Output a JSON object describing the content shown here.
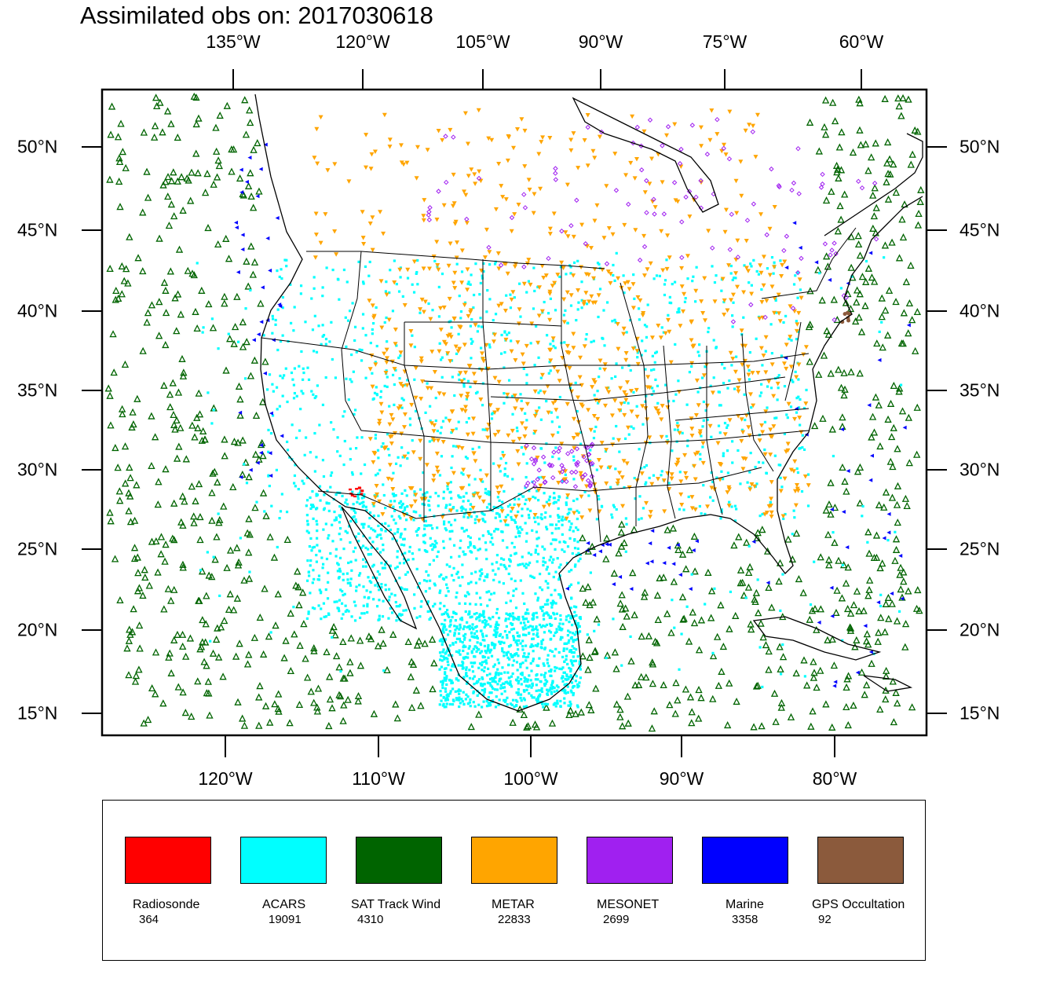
{
  "title": "Assimilated obs on: 2017030618",
  "map": {
    "top_lon_labels": [
      "135°W",
      "120°W",
      "105°W",
      "90°W",
      "75°W",
      "60°W"
    ],
    "bottom_lon_labels": [
      "120°W",
      "110°W",
      "100°W",
      "90°W",
      "80°W"
    ],
    "lat_labels": [
      "50°N",
      "45°N",
      "40°N",
      "35°N",
      "30°N",
      "25°N",
      "20°N",
      "15°N"
    ]
  },
  "legend": [
    {
      "name": "Radiosonde",
      "count": "364",
      "color": "#ff0000"
    },
    {
      "name": "ACARS",
      "count": "19091",
      "color": "#00ffff"
    },
    {
      "name": "SAT Track Wind",
      "count": "4310",
      "color": "#006400"
    },
    {
      "name": "METAR",
      "count": "22833",
      "color": "#ffa500"
    },
    {
      "name": "MESONET",
      "count": "2699",
      "color": "#a020f0"
    },
    {
      "name": "Marine",
      "count": "3358",
      "color": "#0000ff"
    },
    {
      "name": "GPS Occultation",
      "count": "92",
      "color": "#8b5a3c"
    }
  ]
}
